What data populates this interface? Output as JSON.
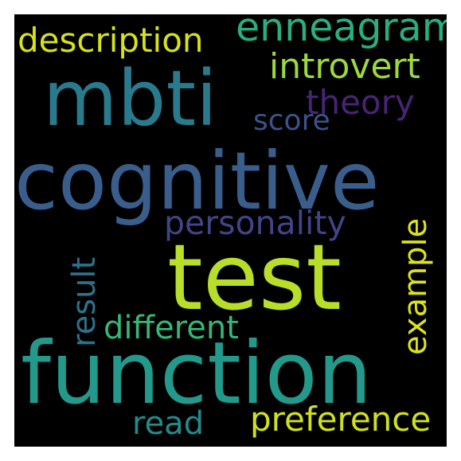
{
  "words": {
    "function": {
      "text": "function",
      "color": "#23998b"
    },
    "cognitive": {
      "text": "cognitive",
      "color": "#3a5e8c"
    },
    "mbti": {
      "text": "mbti",
      "color": "#2a7a8e"
    },
    "test": {
      "text": "test",
      "color": "#b8de29"
    },
    "enneagram": {
      "text": "enneagram",
      "color": "#29af7f"
    },
    "description": {
      "text": "description",
      "color": "#d8e219"
    },
    "introvert": {
      "text": "introvert",
      "color": "#9dd93b"
    },
    "theory": {
      "text": "theory",
      "color": "#482475"
    },
    "score": {
      "text": "score",
      "color": "#3b528b"
    },
    "personality": {
      "text": "personality",
      "color": "#414487"
    },
    "result": {
      "text": "result",
      "color": "#2c728e"
    },
    "example": {
      "text": "example",
      "color": "#dde318"
    },
    "different": {
      "text": "different",
      "color": "#35b779"
    },
    "read": {
      "text": "read",
      "color": "#228c8d"
    },
    "preference": {
      "text": "preference",
      "color": "#d0e11c"
    }
  }
}
